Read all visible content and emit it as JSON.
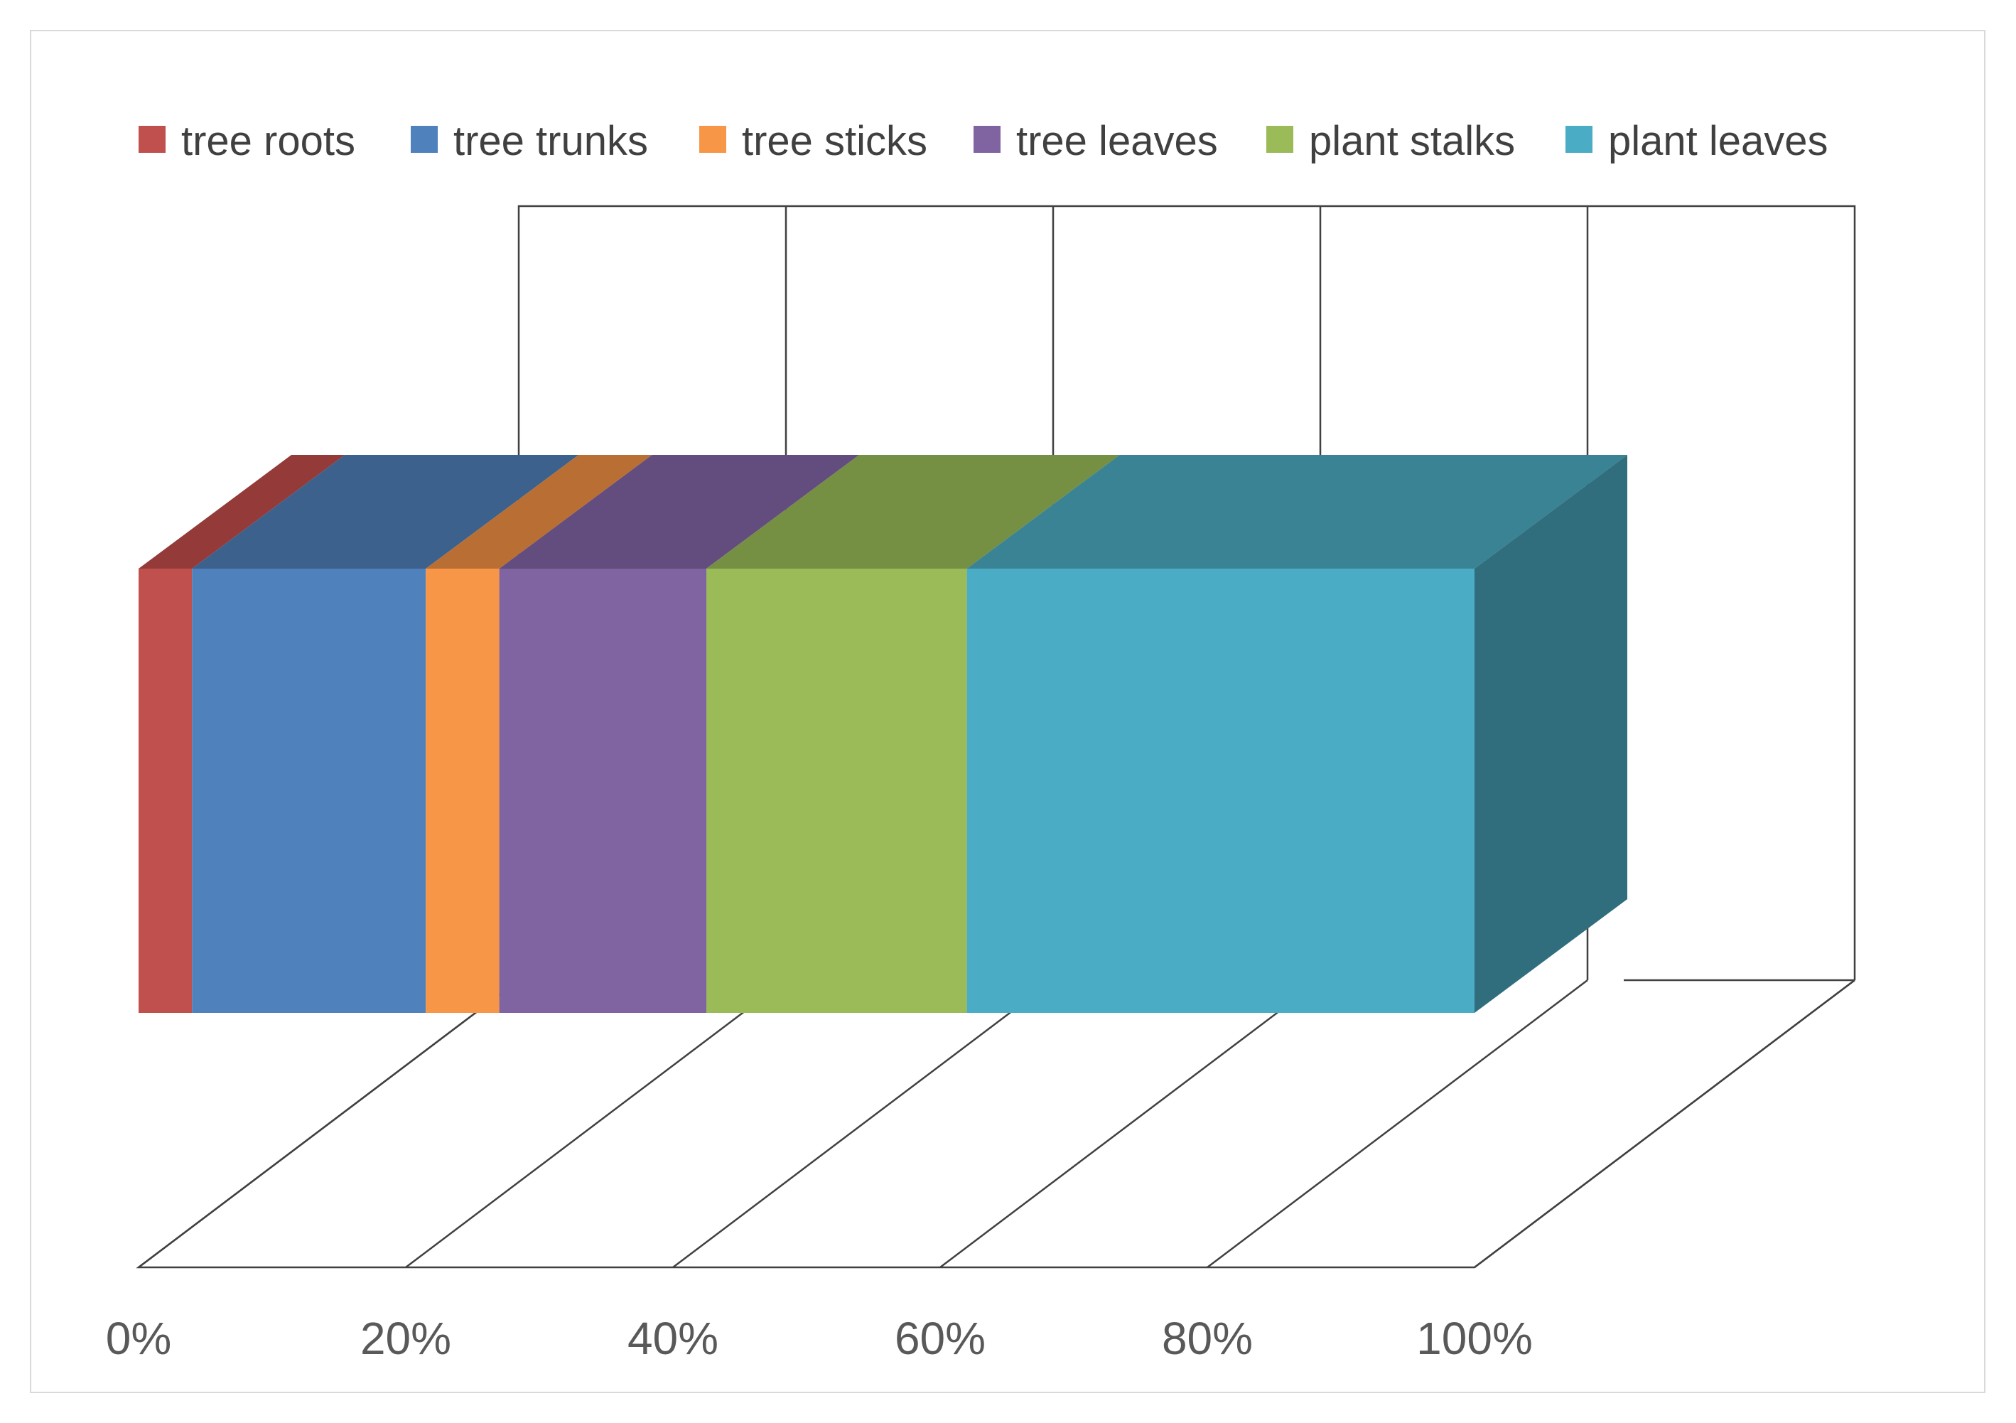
{
  "chart_data": {
    "type": "bar",
    "subtype": "3d-100%-stacked-horizontal",
    "categories": [
      ""
    ],
    "series": [
      {
        "name": "tree roots",
        "values": [
          4
        ],
        "color": "#C0504D",
        "top_color": "#943A38"
      },
      {
        "name": "tree trunks",
        "values": [
          17.5
        ],
        "color": "#4F81BD",
        "top_color": "#3C618C"
      },
      {
        "name": "tree sticks",
        "values": [
          5.5
        ],
        "color": "#F79646",
        "top_color": "#B96F33"
      },
      {
        "name": "tree leaves",
        "values": [
          15.5
        ],
        "color": "#8064A2",
        "top_color": "#634D7E"
      },
      {
        "name": "plant stalks",
        "values": [
          19.5
        ],
        "color": "#9BBB59",
        "top_color": "#758F43"
      },
      {
        "name": "plant leaves",
        "values": [
          38
        ],
        "color": "#4BACC6",
        "top_color": "#398395",
        "side_color": "#306E7D"
      }
    ],
    "x_ticks": [
      "0%",
      "20%",
      "40%",
      "60%",
      "80%",
      "100%"
    ],
    "xlim": [
      0,
      100
    ],
    "legend_position": "top",
    "gridlines": true,
    "title": "",
    "xlabel": "",
    "ylabel": ""
  }
}
